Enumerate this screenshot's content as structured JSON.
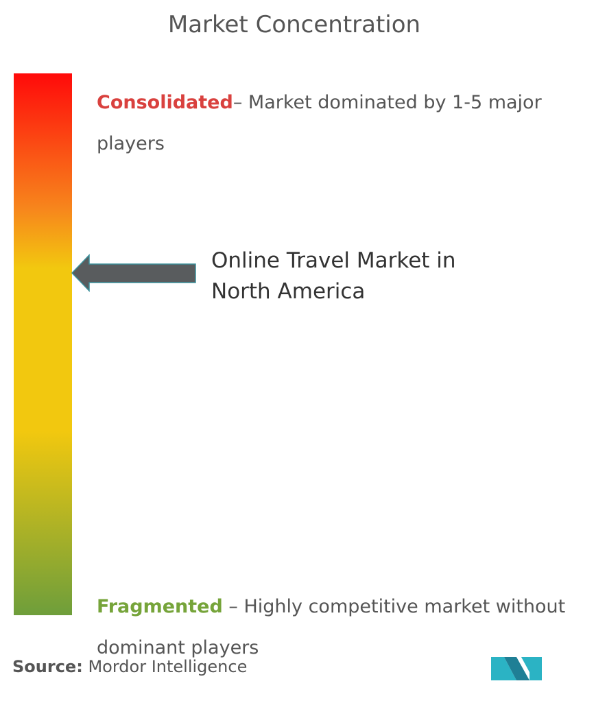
{
  "title": "Market Concentration",
  "consolidated": {
    "label": "Consolidated",
    "description": "– Market dominated by 1-5 major players"
  },
  "market": "Online Travel Market in North America",
  "fragmented": {
    "label": "Fragmented",
    "description": "– Highly competitive market without dominant players"
  },
  "source": {
    "label": "Source:",
    "text": "Mordor Intelligence"
  }
}
